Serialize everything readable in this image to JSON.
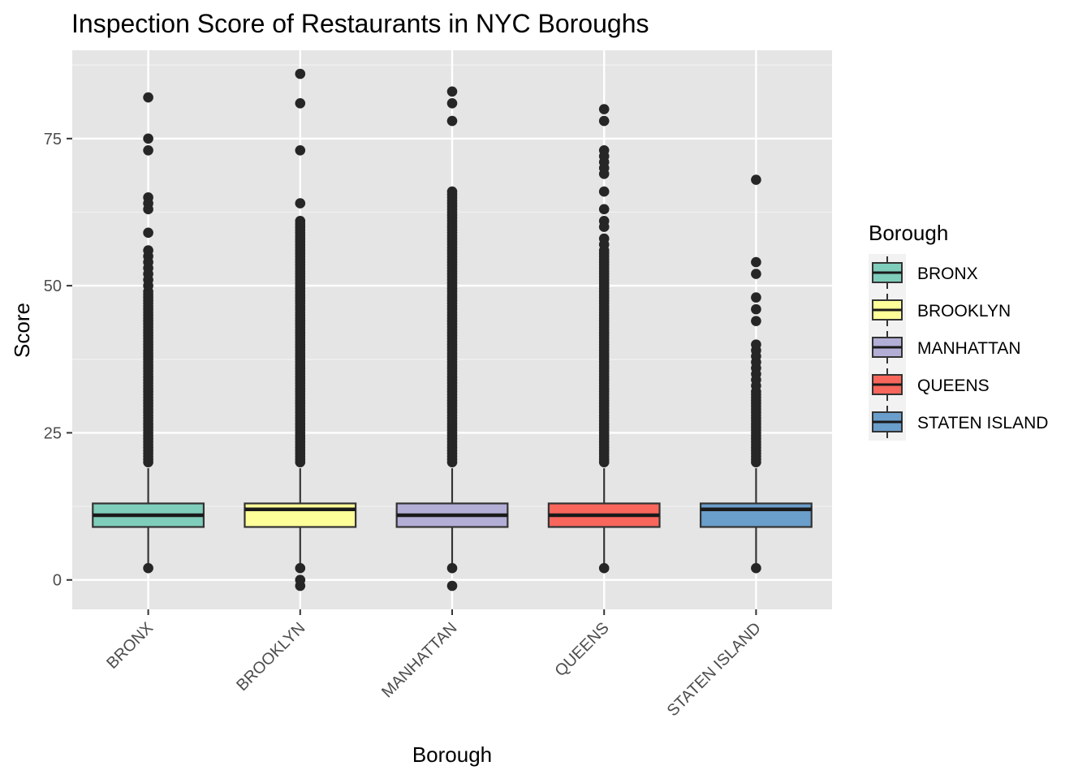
{
  "chart_data": {
    "type": "boxplot",
    "title": "Inspection Score of Restaurants in NYC Boroughs",
    "xlabel": "Borough",
    "ylabel": "Score",
    "ylim": [
      -5,
      90
    ],
    "yticks": [
      0,
      25,
      50,
      75
    ],
    "grid": true,
    "legend_title": "Borough",
    "legend_position": "right",
    "categories": [
      "BRONX",
      "BROOKLYN",
      "MANHATTAN",
      "QUEENS",
      "STATEN ISLAND"
    ],
    "series": [
      {
        "name": "BRONX",
        "color": "#7fcdbb",
        "q1": 9,
        "median": 11,
        "q3": 13,
        "whisker_low": 2,
        "whisker_high": 19,
        "outliers": [
          2,
          20,
          20.5,
          21,
          21.5,
          22,
          22.5,
          23,
          23.5,
          24,
          24.5,
          25,
          25.5,
          26,
          26.5,
          27,
          27.5,
          28,
          28.5,
          29,
          29.5,
          30,
          30.5,
          31,
          31.5,
          32,
          32.5,
          33,
          33.5,
          34,
          34.5,
          35,
          35.5,
          36,
          36.5,
          37,
          37.5,
          38,
          38.5,
          39,
          39.5,
          40,
          40.5,
          41,
          41.5,
          42,
          42.5,
          43,
          43.5,
          44,
          44.5,
          45,
          45.5,
          46,
          46.5,
          47,
          47.5,
          48,
          48.5,
          49,
          50,
          51,
          52,
          53,
          54,
          55,
          56,
          59,
          63,
          64,
          65,
          73,
          75,
          82
        ]
      },
      {
        "name": "BROOKLYN",
        "color": "#ffff99",
        "q1": 9,
        "median": 12,
        "q3": 13,
        "whisker_low": 2,
        "whisker_high": 19,
        "outliers": [
          -1,
          0,
          2,
          20,
          20.5,
          21,
          21.5,
          22,
          22.5,
          23,
          23.5,
          24,
          24.5,
          25,
          25.5,
          26,
          26.5,
          27,
          27.5,
          28,
          28.5,
          29,
          29.5,
          30,
          30.5,
          31,
          31.5,
          32,
          32.5,
          33,
          33.5,
          34,
          34.5,
          35,
          35.5,
          36,
          36.5,
          37,
          37.5,
          38,
          38.5,
          39,
          39.5,
          40,
          40.5,
          41,
          41.5,
          42,
          42.5,
          43,
          43.5,
          44,
          44.5,
          45,
          45.5,
          46,
          46.5,
          47,
          47.5,
          48,
          48.5,
          49,
          49.5,
          50,
          50.5,
          51,
          51.5,
          52,
          52.5,
          53,
          53.5,
          54,
          54.5,
          55,
          55.5,
          56,
          56.5,
          57,
          57.5,
          58,
          58.5,
          59,
          59.5,
          60,
          60.5,
          61,
          64,
          73,
          81,
          86
        ]
      },
      {
        "name": "MANHATTAN",
        "color": "#b3aed6",
        "q1": 9,
        "median": 11,
        "q3": 13,
        "whisker_low": 2,
        "whisker_high": 19,
        "outliers": [
          -1,
          2,
          20,
          20.5,
          21,
          21.5,
          22,
          22.5,
          23,
          23.5,
          24,
          24.5,
          25,
          25.5,
          26,
          26.5,
          27,
          27.5,
          28,
          28.5,
          29,
          29.5,
          30,
          30.5,
          31,
          31.5,
          32,
          32.5,
          33,
          33.5,
          34,
          34.5,
          35,
          35.5,
          36,
          36.5,
          37,
          37.5,
          38,
          38.5,
          39,
          39.5,
          40,
          40.5,
          41,
          41.5,
          42,
          42.5,
          43,
          43.5,
          44,
          44.5,
          45,
          45.5,
          46,
          46.5,
          47,
          47.5,
          48,
          48.5,
          49,
          49.5,
          50,
          50.5,
          51,
          51.5,
          52,
          52.5,
          53,
          53.5,
          54,
          54.5,
          55,
          55.5,
          56,
          56.5,
          57,
          57.5,
          58,
          58.5,
          59,
          59.5,
          60,
          60.5,
          61,
          61.5,
          62,
          62.5,
          63,
          63.5,
          64,
          64.5,
          65,
          65.5,
          66,
          78,
          81,
          83
        ]
      },
      {
        "name": "QUEENS",
        "color": "#f8665c",
        "q1": 9,
        "median": 11,
        "q3": 13,
        "whisker_low": 2,
        "whisker_high": 19,
        "outliers": [
          2,
          20,
          20.5,
          21,
          21.5,
          22,
          22.5,
          23,
          23.5,
          24,
          24.5,
          25,
          25.5,
          26,
          26.5,
          27,
          27.5,
          28,
          28.5,
          29,
          29.5,
          30,
          30.5,
          31,
          31.5,
          32,
          32.5,
          33,
          33.5,
          34,
          34.5,
          35,
          35.5,
          36,
          36.5,
          37,
          37.5,
          38,
          38.5,
          39,
          39.5,
          40,
          40.5,
          41,
          41.5,
          42,
          42.5,
          43,
          43.5,
          44,
          44.5,
          45,
          45.5,
          46,
          46.5,
          47,
          47.5,
          48,
          48.5,
          49,
          49.5,
          50,
          50.5,
          51,
          51.5,
          52,
          52.5,
          53,
          53.5,
          54,
          54.5,
          55,
          55.5,
          56,
          57,
          58,
          60,
          61,
          63,
          66,
          69,
          70,
          71,
          72,
          73,
          78,
          80
        ]
      },
      {
        "name": "STATEN ISLAND",
        "color": "#6a9ecb",
        "q1": 9,
        "median": 12,
        "q3": 13,
        "whisker_low": 2,
        "whisker_high": 19,
        "outliers": [
          2,
          20,
          20.5,
          21,
          21.5,
          22,
          22.5,
          23,
          23.5,
          24,
          24.5,
          25,
          25.5,
          26,
          26.5,
          27,
          27.5,
          28,
          28.5,
          29,
          29.5,
          30,
          30.5,
          31,
          31.5,
          32,
          33,
          34,
          35,
          36,
          37,
          38,
          39,
          40,
          44,
          46,
          48,
          52,
          54,
          68
        ]
      }
    ]
  }
}
